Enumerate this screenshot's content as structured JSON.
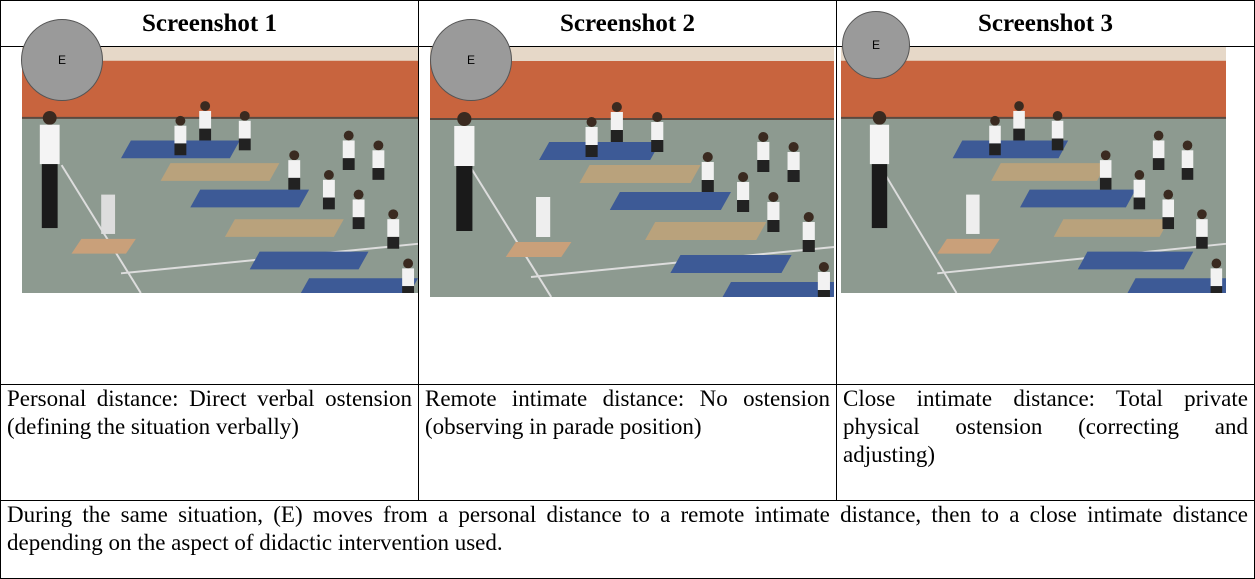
{
  "header": {
    "columns": [
      "Screenshot 1",
      "Screenshot 2",
      "Screenshot 3"
    ]
  },
  "markers": [
    "E",
    "E",
    "E"
  ],
  "descriptions": [
    "Personal distance: Direct verbal ostension (defining the situation verbally)",
    "Remote intimate distance: No ostension (observing in parade position)",
    "Close intimate distance: Total private physical ostension (correcting and adjusting)"
  ],
  "footer": "During the same situation, (E) moves from a personal distance to a remote intimate distance, then to a close intimate distance depending on the aspect of didactic intervention used."
}
